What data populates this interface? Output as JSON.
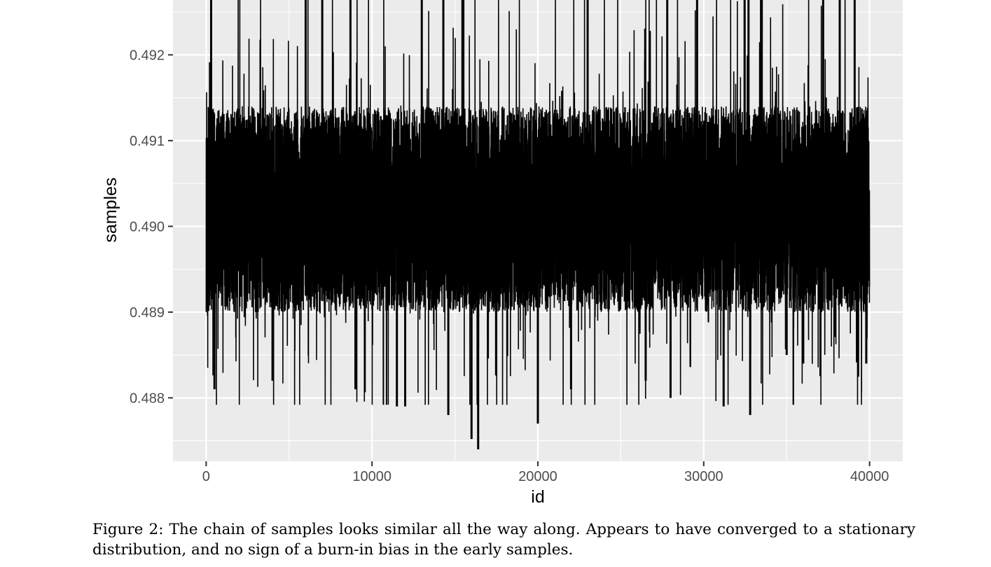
{
  "chart_data": {
    "type": "line",
    "title": "",
    "xlabel": "id",
    "ylabel": "samples",
    "xlim": [
      -2000,
      42000
    ],
    "ylim": [
      0.48726,
      0.49264
    ],
    "x_ticks": [
      0,
      10000,
      20000,
      30000,
      40000
    ],
    "x_tick_labels": [
      "0",
      "10000",
      "20000",
      "30000",
      "40000"
    ],
    "y_ticks": [
      0.488,
      0.489,
      0.49,
      0.491,
      0.492
    ],
    "y_tick_labels": [
      "0.488",
      "0.489",
      "0.490",
      "0.491",
      "0.492"
    ],
    "grid": true,
    "panel_background": "#ebebeb",
    "line_color": "#000000",
    "series": [
      {
        "n_points": 40000,
        "x_range": [
          0,
          40000
        ],
        "mean": 0.4902,
        "typical_range": [
          0.4891,
          0.4915
        ],
        "min_value": 0.48752,
        "max_value": 0.49266
      }
    ]
  },
  "caption": {
    "label": "Figure 2:",
    "text": "The chain of samples looks similar all the way along. Appears to have converged to a stationary distribution, and no sign of a burn-in bias in the early samples."
  }
}
